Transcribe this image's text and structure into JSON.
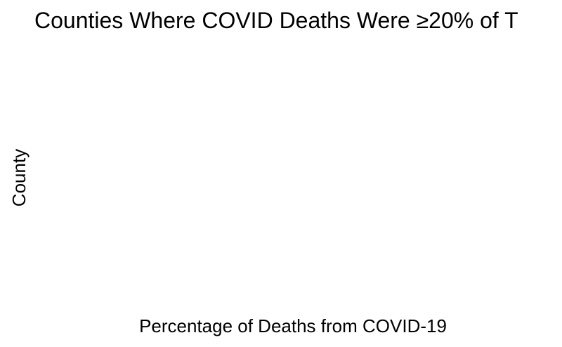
{
  "chart_data": {
    "type": "bar",
    "title": "Counties Where COVID Deaths Were ≥20% of T",
    "xlabel": "Percentage of Deaths from COVID-19",
    "ylabel": "County",
    "categories": [],
    "values": [],
    "grid": false
  }
}
